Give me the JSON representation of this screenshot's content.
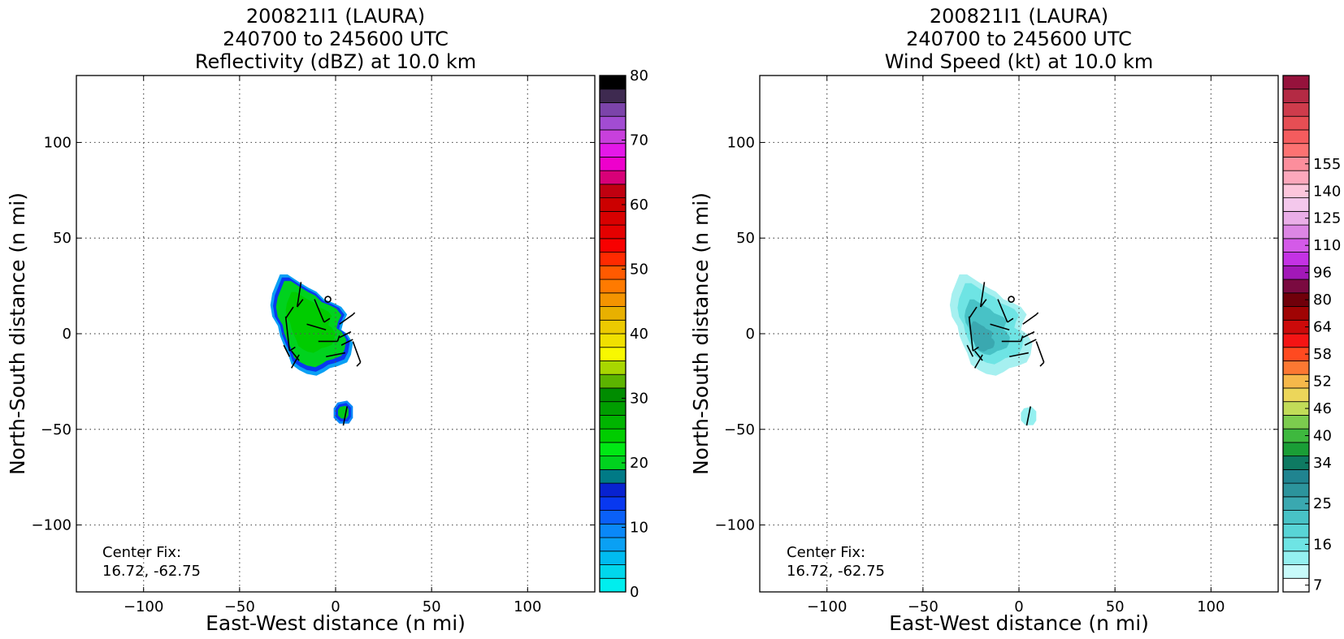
{
  "chart_data": [
    {
      "type": "heatmap",
      "title": [
        "200821I1 (LAURA)",
        "240700 to 245600 UTC",
        "Reflectivity (dBZ) at 10.0 km"
      ],
      "xlabel": "East-West distance (n mi)",
      "ylabel": "North-South distance (n mi)",
      "xlim": [
        -135,
        135
      ],
      "ylim": [
        -135,
        135
      ],
      "xticks": [
        -100,
        -50,
        0,
        50,
        100
      ],
      "yticks": [
        -100,
        -50,
        0,
        50,
        100
      ],
      "xtick_labels": [
        "−100",
        "−50",
        "0",
        "50",
        "100"
      ],
      "ytick_labels": [
        "−100",
        "−50",
        "0",
        "50",
        "100"
      ],
      "grid": true,
      "annotation": [
        "Center Fix:",
        "16.72, -62.75"
      ],
      "colorbar": {
        "min": 0,
        "max": 80,
        "tick_values": [
          0,
          10,
          20,
          30,
          40,
          50,
          60,
          70,
          80
        ],
        "tick_labels": [
          "0",
          "10",
          "20",
          "30",
          "40",
          "50",
          "60",
          "70",
          "80"
        ],
        "colors": [
          "#00eeee",
          "#00d7ec",
          "#00bbf0",
          "#0aa0f4",
          "#0a88f8",
          "#0a60f8",
          "#0838f0",
          "#0822d0",
          "#007a86",
          "#00d21e",
          "#00e814",
          "#00cc00",
          "#00b400",
          "#009e00",
          "#008c00",
          "#5cb400",
          "#a8d600",
          "#f8f800",
          "#f0e000",
          "#ecca00",
          "#e8b000",
          "#f49400",
          "#ff7a00",
          "#ff5a00",
          "#ff2a00",
          "#f80000",
          "#e40000",
          "#d80000",
          "#cc0000",
          "#c00010",
          "#d80078",
          "#ee00cc",
          "#e418e8",
          "#c840dc",
          "#a24cd2",
          "#7c44aa",
          "#3e2a50",
          "#000000"
        ]
      },
      "echoes": [
        {
          "name": "main-echo",
          "center": [
            -14,
            8
          ],
          "extent_x": [
            -32,
            10
          ],
          "extent_y": [
            -20,
            32
          ]
        },
        {
          "name": "south-echo",
          "center": [
            4,
            -41
          ],
          "extent_x": [
            -2,
            9
          ],
          "extent_y": [
            -47,
            -35
          ]
        }
      ]
    },
    {
      "type": "heatmap",
      "title": [
        "200821I1 (LAURA)",
        "240700 to 245600 UTC",
        "Wind Speed (kt) at 10.0 km"
      ],
      "xlabel": "East-West distance (n mi)",
      "ylabel": "North-South distance (n mi)",
      "xlim": [
        -135,
        135
      ],
      "ylim": [
        -135,
        135
      ],
      "xticks": [
        -100,
        -50,
        0,
        50,
        100
      ],
      "yticks": [
        -100,
        -50,
        0,
        50,
        100
      ],
      "xtick_labels": [
        "−100",
        "−50",
        "0",
        "50",
        "100"
      ],
      "ytick_labels": [
        "−100",
        "−50",
        "0",
        "50",
        "100"
      ],
      "grid": true,
      "annotation": [
        "Center Fix:",
        "16.72, -62.75"
      ],
      "colorbar": {
        "tick_labels": [
          "7",
          "16",
          "25",
          "34",
          "40",
          "46",
          "52",
          "58",
          "64",
          "80",
          "96",
          "110",
          "125",
          "140",
          "155"
        ],
        "tick_bins": [
          0,
          3,
          6,
          9,
          11,
          13,
          15,
          17,
          19,
          21,
          23,
          25,
          27,
          29,
          31
        ],
        "colors": [
          "#ffffff",
          "#c8fafa",
          "#94f0f0",
          "#6ee4e4",
          "#58d4d6",
          "#48c2c6",
          "#3aa8b0",
          "#2c949c",
          "#208490",
          "#0e7a62",
          "#1a9e36",
          "#3eb83e",
          "#7ccc4e",
          "#c2dc58",
          "#ecd65a",
          "#f6b84a",
          "#fc7832",
          "#ff4a20",
          "#f41414",
          "#cc0a0a",
          "#a00404",
          "#70000a",
          "#7a0a40",
          "#a218b8",
          "#c432e4",
          "#d45ae8",
          "#dc86e4",
          "#eaaee8",
          "#f4c8ec",
          "#fcc6dc",
          "#fca8bc",
          "#fc8e9c",
          "#fc7272",
          "#f45c5e",
          "#e64e54",
          "#ce3c4c",
          "#b42a44",
          "#96123c"
        ]
      },
      "echoes": [
        {
          "name": "main-wind",
          "center": [
            -16,
            8
          ],
          "extent_x": [
            -34,
            8
          ],
          "extent_y": [
            -20,
            32
          ]
        },
        {
          "name": "south-wind",
          "center": [
            5,
            -43
          ],
          "extent_x": [
            0,
            9
          ],
          "extent_y": [
            -48,
            -38
          ]
        }
      ]
    }
  ]
}
